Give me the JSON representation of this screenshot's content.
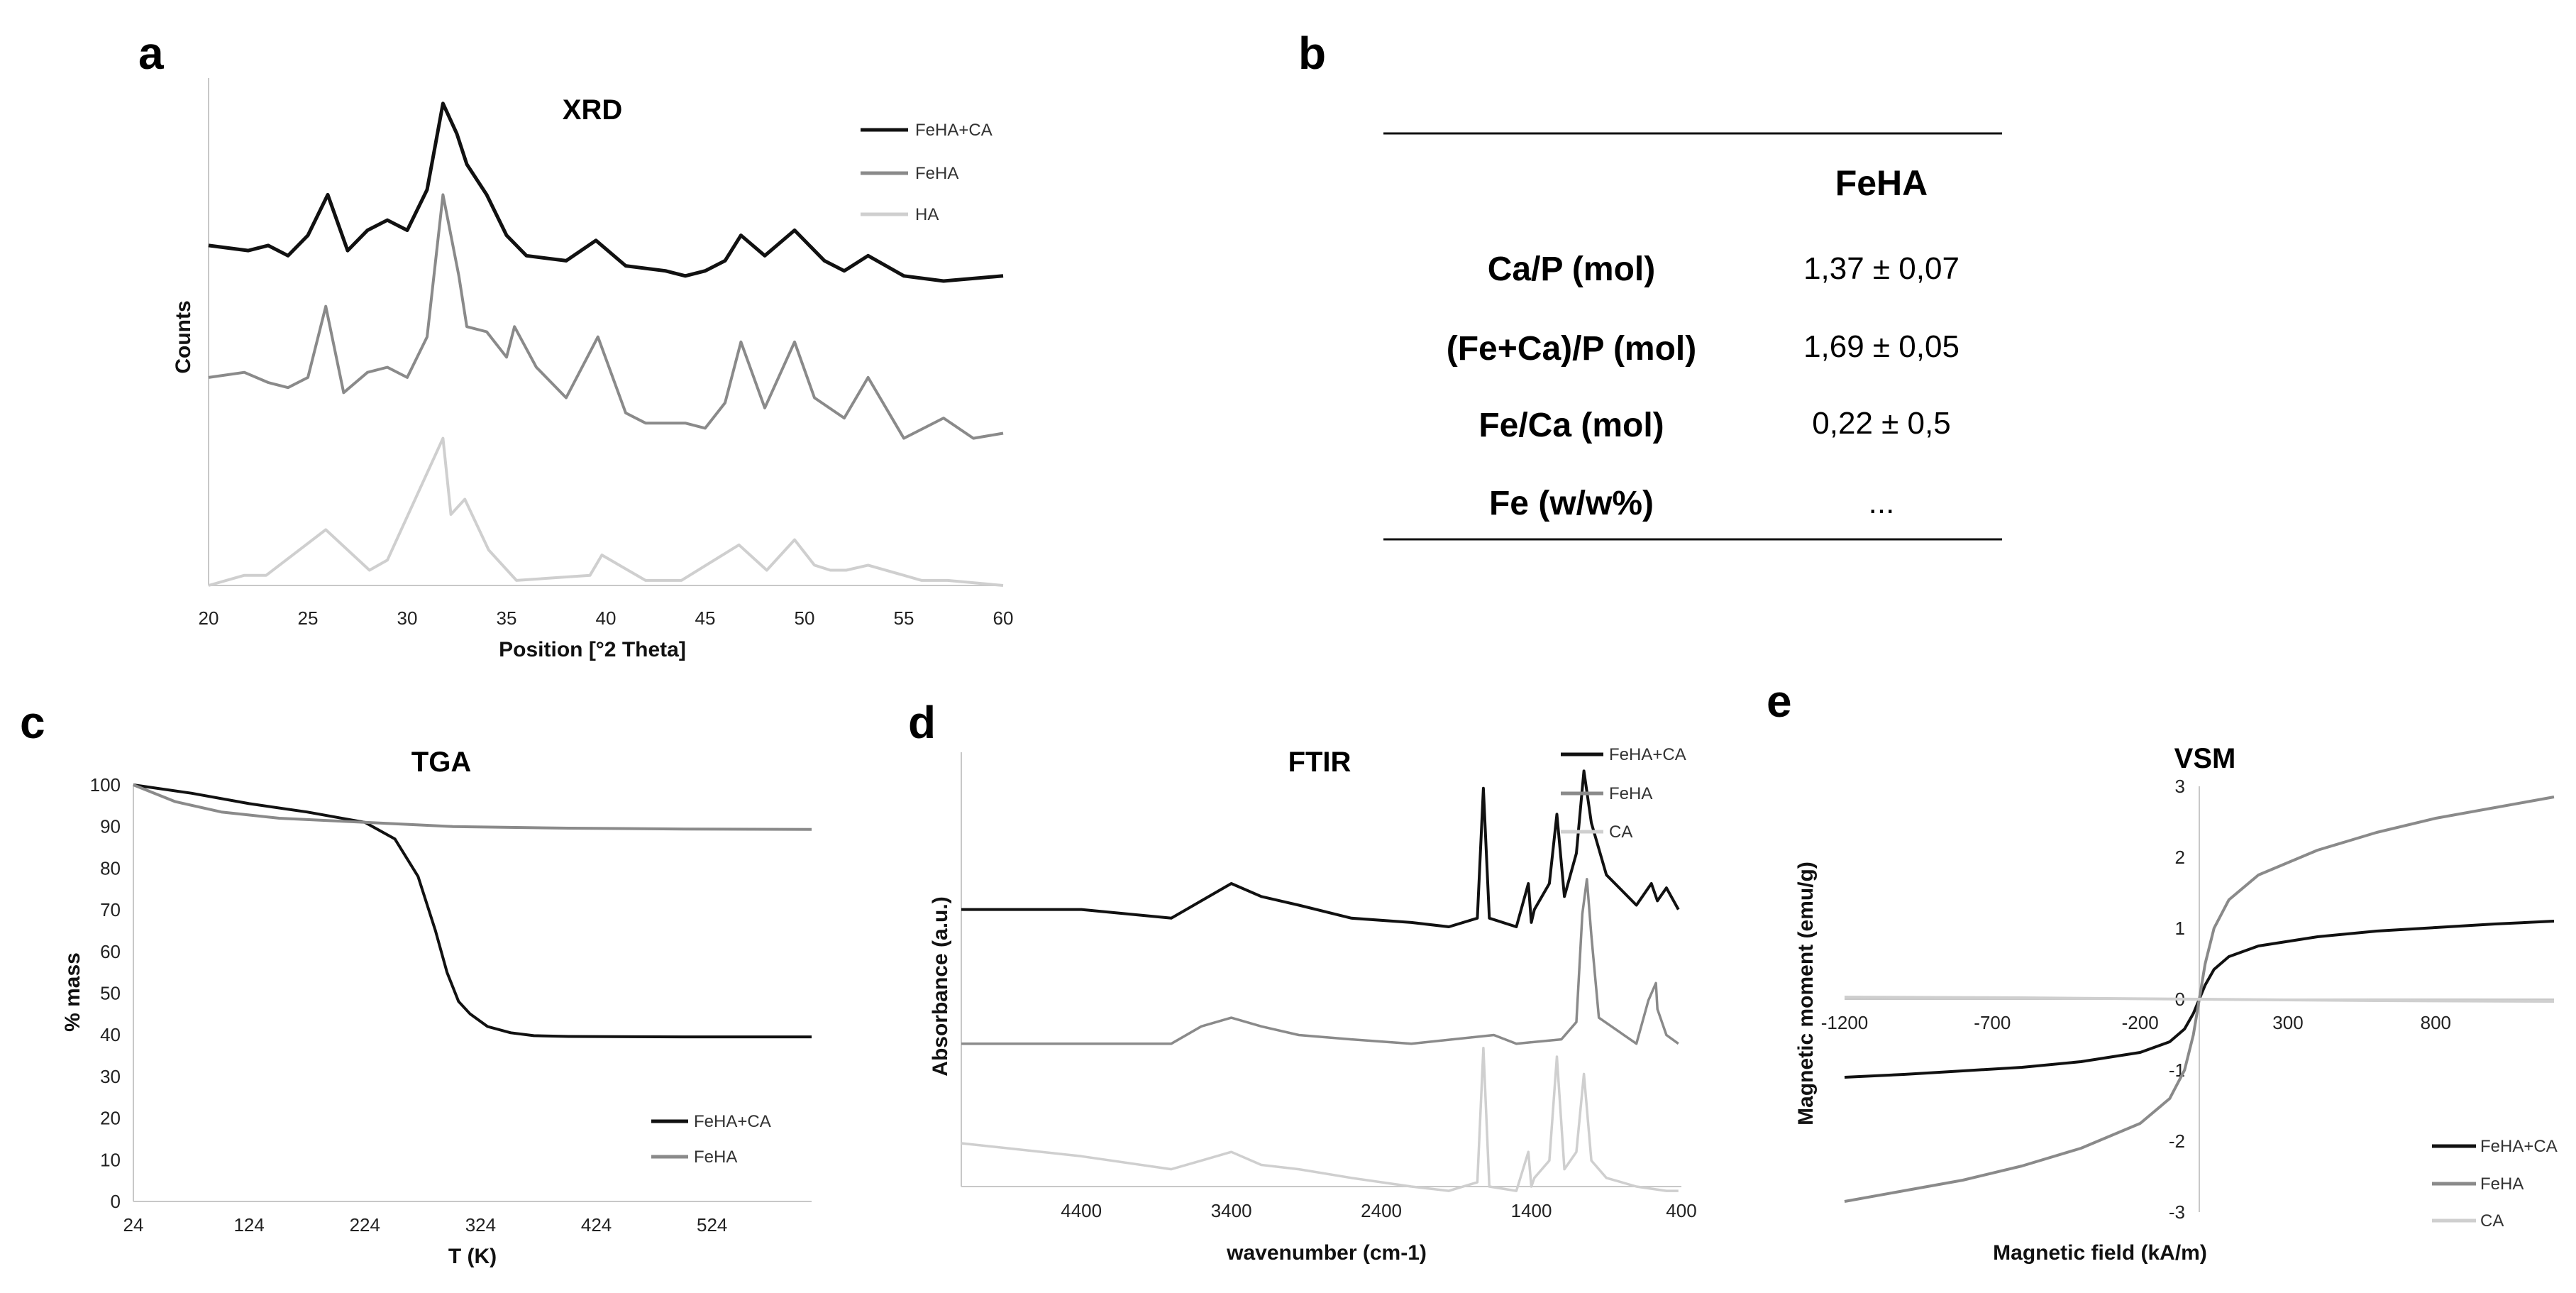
{
  "colors": {
    "black": "#111111",
    "gray": "#8a8a8a",
    "light": "#cfcfcf"
  },
  "panels": {
    "a": {
      "letter": "a",
      "chart_data": {
        "type": "line",
        "title": "XRD",
        "xlabel": "Position [°2 Theta]",
        "ylabel": "Counts",
        "xlim": [
          20,
          60
        ],
        "xticks": [
          "20",
          "25",
          "30",
          "35",
          "40",
          "45",
          "50",
          "55",
          "60"
        ],
        "legend": [
          "FeHA+CA",
          "FeHA",
          "HA"
        ],
        "legend_position": "top-right",
        "series": [
          {
            "name": "FeHA+CA",
            "color": "black",
            "offset": 0.67,
            "x": [
              20,
              22,
              23,
              24,
              25,
              26,
              27,
              28,
              29,
              30,
              31,
              31.8,
              32.5,
              33,
              34,
              35,
              36,
              38,
              39.5,
              41,
              43,
              44,
              45,
              46,
              46.8,
              48,
              49.5,
              51,
              52,
              53.2,
              55,
              57,
              60
            ],
            "y": [
              0.0,
              -0.01,
              0.0,
              -0.02,
              0.02,
              0.1,
              -0.01,
              0.03,
              0.05,
              0.03,
              0.11,
              0.28,
              0.22,
              0.16,
              0.1,
              0.02,
              -0.02,
              -0.03,
              0.01,
              -0.04,
              -0.05,
              -0.06,
              -0.05,
              -0.03,
              0.02,
              -0.02,
              0.03,
              -0.03,
              -0.05,
              -0.02,
              -0.06,
              -0.07,
              -0.06
            ]
          },
          {
            "name": "FeHA",
            "color": "gray",
            "offset": 0.41,
            "x": [
              20,
              21.8,
              23,
              24,
              25,
              25.9,
              26.8,
              28,
              29,
              30,
              31,
              31.8,
              32.6,
              33,
              34,
              35,
              35.4,
              36.5,
              38,
              39.6,
              41,
              42,
              44,
              45,
              46,
              46.8,
              48,
              49.5,
              50.5,
              52,
              53.2,
              55,
              57,
              58.5,
              60
            ],
            "y": [
              0.0,
              0.01,
              -0.01,
              -0.02,
              0.0,
              0.14,
              -0.03,
              0.01,
              0.02,
              0.0,
              0.08,
              0.36,
              0.2,
              0.1,
              0.09,
              0.04,
              0.1,
              0.02,
              -0.04,
              0.08,
              -0.07,
              -0.09,
              -0.09,
              -0.1,
              -0.05,
              0.07,
              -0.06,
              0.07,
              -0.04,
              -0.08,
              0.0,
              -0.12,
              -0.08,
              -0.12,
              -0.11
            ]
          },
          {
            "name": "HA",
            "color": "light",
            "offset": 0.0,
            "x": [
              20,
              21.8,
              22.9,
              25.9,
              28.1,
              29,
              31.8,
              32.2,
              32.9,
              34.1,
              35.5,
              39.2,
              39.8,
              42,
              43.8,
              46.7,
              48.1,
              49.5,
              50.5,
              51.3,
              52.1,
              53.2,
              55.9,
              57.2,
              60
            ],
            "y": [
              0,
              0.02,
              0.02,
              0.11,
              0.03,
              0.05,
              0.29,
              0.14,
              0.17,
              0.07,
              0.01,
              0.02,
              0.06,
              0.01,
              0.01,
              0.08,
              0.03,
              0.09,
              0.04,
              0.03,
              0.03,
              0.04,
              0.01,
              0.01,
              0
            ]
          }
        ]
      }
    },
    "b": {
      "letter": "b",
      "table": {
        "column_header": "FeHA",
        "rows": [
          {
            "label": "Ca/P (mol)",
            "value": "1,37 ± 0,07"
          },
          {
            "label": "(Fe+Ca)/P (mol)",
            "value": "1,69 ± 0,05"
          },
          {
            "label": "Fe/Ca (mol)",
            "value": "0,22 ± 0,5"
          },
          {
            "label": "Fe (w/w%)",
            "value": "..."
          }
        ]
      }
    },
    "c": {
      "letter": "c",
      "chart_data": {
        "type": "line",
        "title": "TGA",
        "xlabel": "T (K)",
        "ylabel": "% mass",
        "xlim": [
          24,
          610
        ],
        "ylim": [
          0,
          100
        ],
        "xticks": [
          "24",
          "124",
          "224",
          "324",
          "424",
          "524"
        ],
        "yticks": [
          "0",
          "10",
          "20",
          "30",
          "40",
          "50",
          "60",
          "70",
          "80",
          "90",
          "100"
        ],
        "legend": [
          "FeHA+CA",
          "FeHA"
        ],
        "legend_position": "bottom-right",
        "series": [
          {
            "name": "FeHA+CA",
            "color": "black",
            "x": [
              24,
              74,
              124,
              174,
              224,
              250,
              270,
              285,
              295,
              305,
              315,
              330,
              350,
              370,
              400,
              500,
              610
            ],
            "y": [
              100,
              98,
              95.5,
              93.5,
              91,
              87,
              78,
              65,
              55,
              48,
              45,
              42,
              40.5,
              39.8,
              39.6,
              39.5,
              39.5
            ]
          },
          {
            "name": "FeHA",
            "color": "gray",
            "x": [
              24,
              60,
              100,
              150,
              224,
              300,
              400,
              500,
              610
            ],
            "y": [
              100,
              96,
              93.5,
              92,
              91,
              90,
              89.6,
              89.4,
              89.3
            ]
          }
        ]
      }
    },
    "d": {
      "letter": "d",
      "chart_data": {
        "type": "line",
        "title": "FTIR",
        "xlabel": "wavenumber (cm-1)",
        "ylabel": "Absorbance (a.u.)",
        "xlim": [
          5200,
          400
        ],
        "xticks": [
          "4400",
          "3400",
          "2400",
          "1400",
          "400"
        ],
        "legend": [
          "FeHA+CA",
          "FeHA",
          "CA"
        ],
        "legend_position": "top-right",
        "series": [
          {
            "name": "FeHA+CA",
            "color": "black",
            "offset": 0.62,
            "x": [
              5200,
              4400,
              3800,
              3600,
              3400,
              3200,
              2950,
              2600,
              2200,
              1950,
              1760,
              1720,
              1680,
              1500,
              1420,
              1400,
              1380,
              1280,
              1230,
              1180,
              1100,
              1050,
              1000,
              900,
              700,
              600,
              560,
              500,
              420
            ],
            "y": [
              0.02,
              0.02,
              0.0,
              0.04,
              0.08,
              0.05,
              0.03,
              0.0,
              -0.01,
              -0.02,
              0.0,
              0.3,
              0.0,
              -0.02,
              0.08,
              -0.01,
              0.02,
              0.08,
              0.24,
              0.05,
              0.15,
              0.34,
              0.22,
              0.1,
              0.03,
              0.08,
              0.04,
              0.07,
              0.02
            ]
          },
          {
            "name": "FeHA",
            "color": "gray",
            "offset": 0.33,
            "x": [
              5200,
              4400,
              3800,
              3600,
              3400,
              3200,
              2950,
              2600,
              2200,
              1650,
              1500,
              1200,
              1100,
              1060,
              1030,
              1000,
              950,
              700,
              620,
              570,
              560,
              500,
              420
            ],
            "y": [
              0.0,
              0.0,
              0.0,
              0.04,
              0.06,
              0.04,
              0.02,
              0.01,
              0.0,
              0.02,
              0.0,
              0.01,
              0.05,
              0.3,
              0.38,
              0.25,
              0.06,
              0.0,
              0.1,
              0.14,
              0.08,
              0.02,
              0.0
            ]
          },
          {
            "name": "CA",
            "color": "light",
            "offset": 0.1,
            "x": [
              5200,
              4400,
              3800,
              3600,
              3400,
              3200,
              2950,
              2600,
              2200,
              1950,
              1760,
              1720,
              1680,
              1500,
              1420,
              1400,
              1380,
              1280,
              1230,
              1180,
              1100,
              1050,
              1000,
              900,
              700,
              500,
              420
            ],
            "y": [
              0.0,
              -0.03,
              -0.06,
              -0.04,
              -0.02,
              -0.05,
              -0.06,
              -0.08,
              -0.1,
              -0.11,
              -0.09,
              0.22,
              -0.1,
              -0.11,
              -0.02,
              -0.1,
              -0.08,
              -0.04,
              0.2,
              -0.06,
              -0.02,
              0.16,
              -0.04,
              -0.08,
              -0.1,
              -0.11,
              -0.11
            ]
          }
        ]
      }
    },
    "e": {
      "letter": "e",
      "chart_data": {
        "type": "line",
        "title": "VSM",
        "xlabel": "Magnetic field (kA/m)",
        "ylabel": "Magnetic moment (emu/g)",
        "xlim": [
          -1200,
          1200
        ],
        "ylim": [
          -3,
          3
        ],
        "xticks": [
          "-1200",
          "-700",
          "-200",
          "300",
          "800"
        ],
        "yticks": [
          "-3",
          "-2",
          "-1",
          "0",
          "1",
          "2",
          "3"
        ],
        "legend": [
          "FeHA+CA",
          "FeHA",
          "CA"
        ],
        "legend_position": "bottom-right",
        "series": [
          {
            "name": "FeHA+CA",
            "color": "black",
            "x": [
              -1200,
              -1000,
              -800,
              -600,
              -400,
              -200,
              -100,
              -50,
              -20,
              0,
              20,
              50,
              100,
              200,
              400,
              600,
              800,
              1000,
              1200
            ],
            "y": [
              -1.1,
              -1.06,
              -1.01,
              -0.96,
              -0.88,
              -0.75,
              -0.6,
              -0.42,
              -0.2,
              0,
              0.2,
              0.42,
              0.6,
              0.75,
              0.88,
              0.96,
              1.01,
              1.06,
              1.1
            ]
          },
          {
            "name": "FeHA",
            "color": "gray",
            "x": [
              -1200,
              -1000,
              -800,
              -600,
              -400,
              -200,
              -100,
              -50,
              -20,
              0,
              20,
              50,
              100,
              200,
              400,
              600,
              800,
              1000,
              1200
            ],
            "y": [
              -2.85,
              -2.7,
              -2.55,
              -2.35,
              -2.1,
              -1.75,
              -1.4,
              -1.0,
              -0.5,
              0,
              0.5,
              1.0,
              1.4,
              1.75,
              2.1,
              2.35,
              2.55,
              2.7,
              2.85
            ]
          },
          {
            "name": "CA",
            "color": "light",
            "x": [
              -1200,
              -600,
              0,
              600,
              1200
            ],
            "y": [
              0.03,
              0.02,
              0,
              -0.02,
              -0.03
            ]
          }
        ]
      }
    }
  }
}
